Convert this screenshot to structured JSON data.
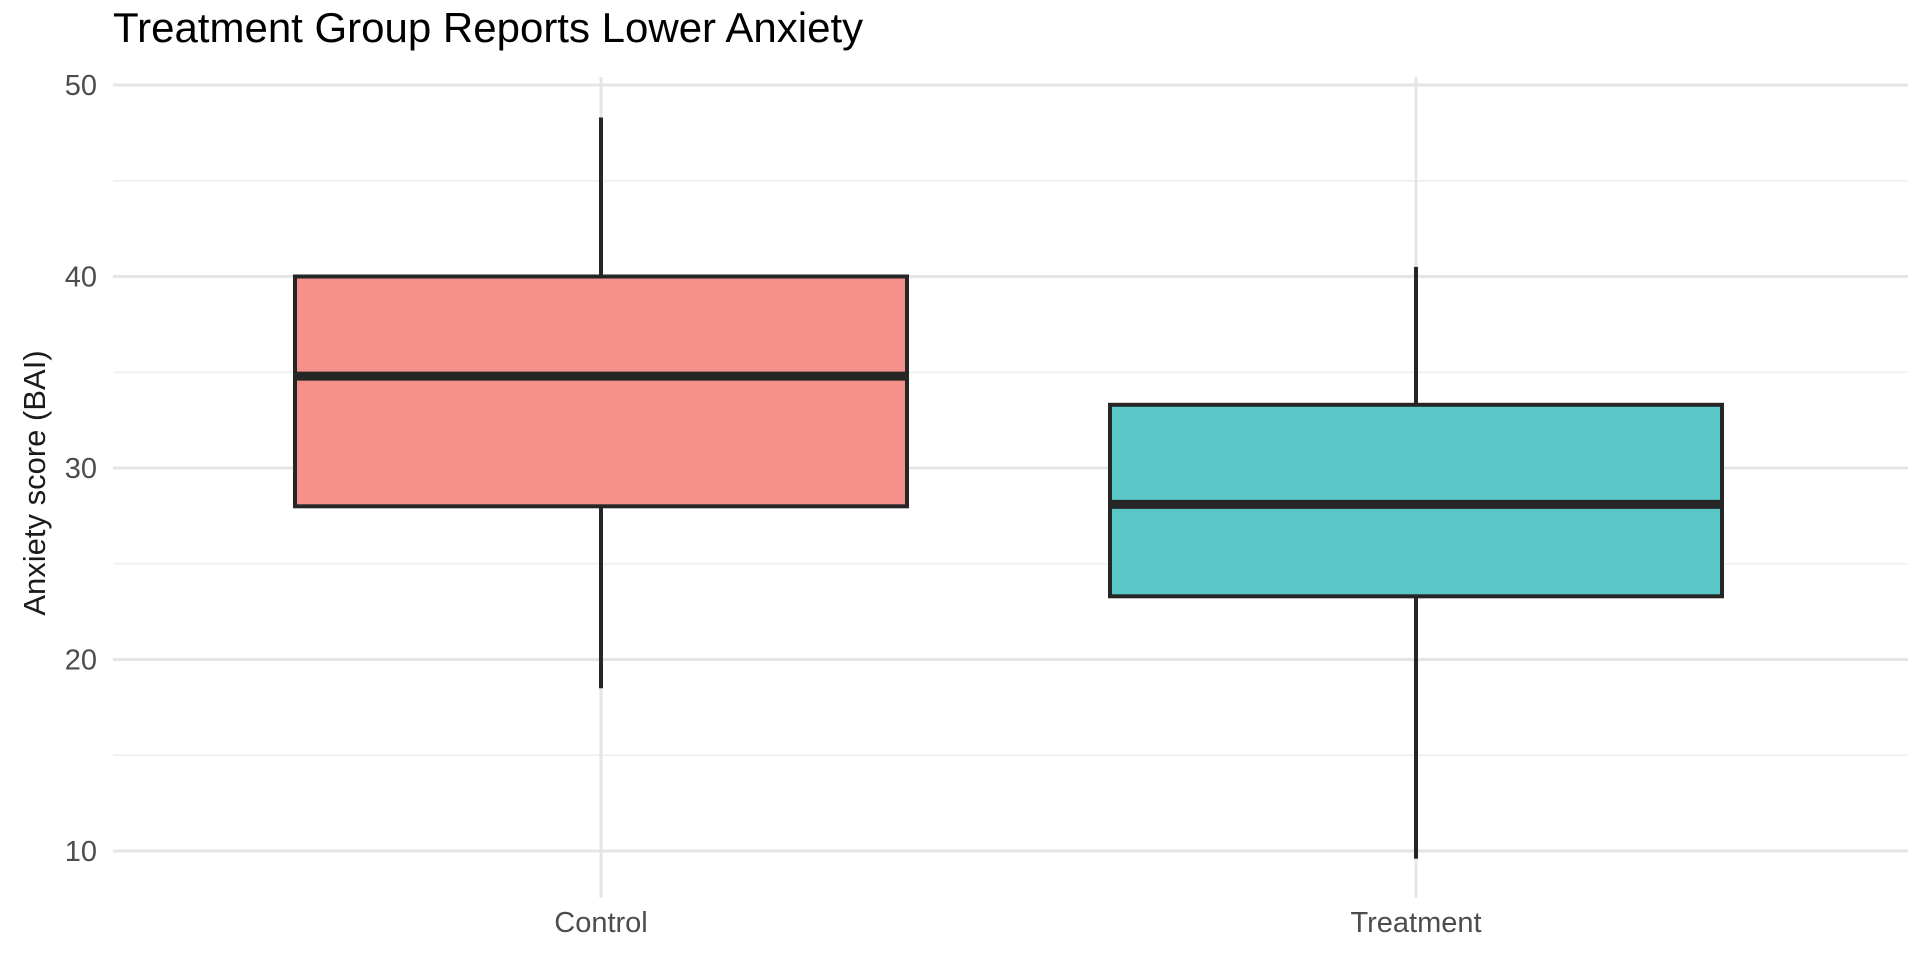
{
  "chart_data": {
    "type": "boxplot",
    "title": "Treatment Group Reports Lower Anxiety",
    "ylabel": "Anxiety score (BAI)",
    "xlabel": "",
    "categories": [
      "Control",
      "Treatment"
    ],
    "series": [
      {
        "name": "Control",
        "fill": "#F5908A",
        "whisker_low": 18.5,
        "q1": 28.0,
        "median": 34.8,
        "q3": 40.0,
        "whisker_high": 48.3,
        "outliers": []
      },
      {
        "name": "Treatment",
        "fill": "#59C7C6",
        "whisker_low": 9.6,
        "q1": 23.3,
        "median": 28.1,
        "q3": 33.3,
        "whisker_high": 40.5,
        "outliers": []
      }
    ],
    "y_ticks": [
      50,
      40,
      30,
      20,
      10
    ],
    "y_minor_ticks": [
      45,
      35,
      25,
      15
    ],
    "ylim": [
      7.5,
      50.4
    ],
    "legend": "none",
    "grid": {
      "horizontal_major": true,
      "horizontal_minor": true,
      "vertical_at_categories": true
    },
    "colors": {
      "box_stroke": "#262626",
      "median_stroke": "#262626",
      "whisker_stroke": "#262626",
      "axis_text": "#4D4D4D",
      "grid_major": "#E5E5E5",
      "grid_minor": "#F0F0F0",
      "title_text": "#000000",
      "background": "#FFFFFF"
    }
  }
}
